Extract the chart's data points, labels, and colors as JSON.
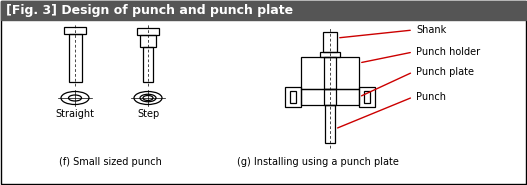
{
  "title": "[Fig. 3] Design of punch and punch plate",
  "title_bg": "#555555",
  "title_color": "#ffffff",
  "bg_color": "#ffffff",
  "border_color": "#000000",
  "line_color": "#000000",
  "red_color": "#cc0000",
  "label_shank": "Shank",
  "label_punch_holder": "Punch holder",
  "label_punch_plate": "Punch plate",
  "label_punch": "Punch",
  "label_straight": "Straight",
  "label_step": "Step",
  "label_f": "(f) Small sized punch",
  "label_g": "(g) Installing using a punch plate",
  "font_size_title": 9.0,
  "font_size_label": 7.0
}
